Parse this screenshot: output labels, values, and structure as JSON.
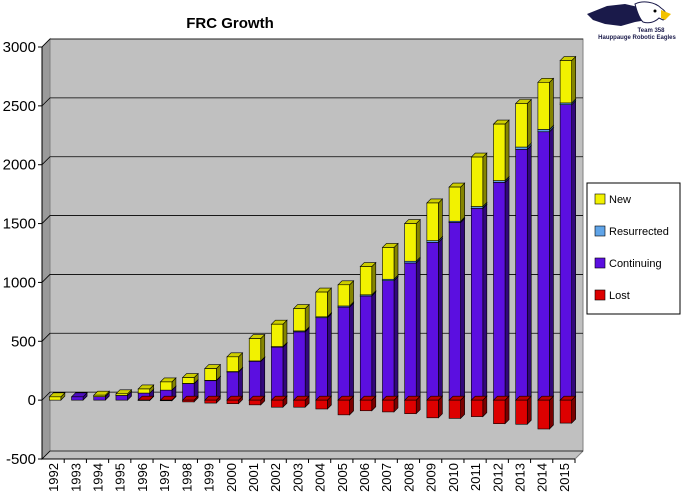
{
  "colors": {
    "new": "#f2f200",
    "resurrected": "#5fa4e8",
    "continuing": "#5b0fe0",
    "lost": "#dd0000",
    "plot_bg": "#c0c0c0"
  },
  "logo": {
    "name": "eagle-logo",
    "line1": "Team 358",
    "line2": "Hauppauge Robotic Eagles"
  },
  "chart_data": {
    "type": "bar",
    "stacked": true,
    "title": "FRC Growth",
    "xlabel": "",
    "ylabel": "",
    "ylim": [
      -500,
      3000
    ],
    "yticks": [
      -500,
      0,
      500,
      1000,
      1500,
      2000,
      2500,
      3000
    ],
    "grid": true,
    "legend_position": "right",
    "categories": [
      "1992",
      "1993",
      "1994",
      "1995",
      "1996",
      "1997",
      "1998",
      "1999",
      "2000",
      "2001",
      "2002",
      "2003",
      "2004",
      "2005",
      "2006",
      "2007",
      "2008",
      "2009",
      "2010",
      "2011",
      "2012",
      "2013",
      "2014",
      "2015"
    ],
    "series": [
      {
        "name": "New",
        "key": "new",
        "values": [
          28,
          2,
          12,
          14,
          35,
          70,
          50,
          100,
          125,
          190,
          190,
          190,
          210,
          180,
          240,
          270,
          320,
          320,
          290,
          420,
          480,
          370,
          400,
          360
        ]
      },
      {
        "name": "Resurrected",
        "key": "resurrected",
        "values": [
          0,
          0,
          0,
          0,
          0,
          0,
          2,
          3,
          3,
          3,
          5,
          8,
          8,
          10,
          10,
          12,
          15,
          15,
          10,
          15,
          15,
          20,
          20,
          15
        ]
      },
      {
        "name": "Continuing",
        "key": "continuing",
        "values": [
          0,
          28,
          30,
          40,
          60,
          85,
          140,
          165,
          240,
          330,
          450,
          580,
          700,
          790,
          885,
          1015,
          1165,
          1340,
          1510,
          1630,
          1850,
          2130,
          2280,
          2510
        ]
      },
      {
        "name": "Lost",
        "key": "lost",
        "values": [
          0,
          -2,
          -2,
          -2,
          -3,
          -5,
          -15,
          -25,
          -30,
          -40,
          -60,
          -60,
          -75,
          -125,
          -90,
          -100,
          -115,
          -150,
          -155,
          -140,
          -200,
          -205,
          -245,
          -195
        ]
      }
    ]
  }
}
